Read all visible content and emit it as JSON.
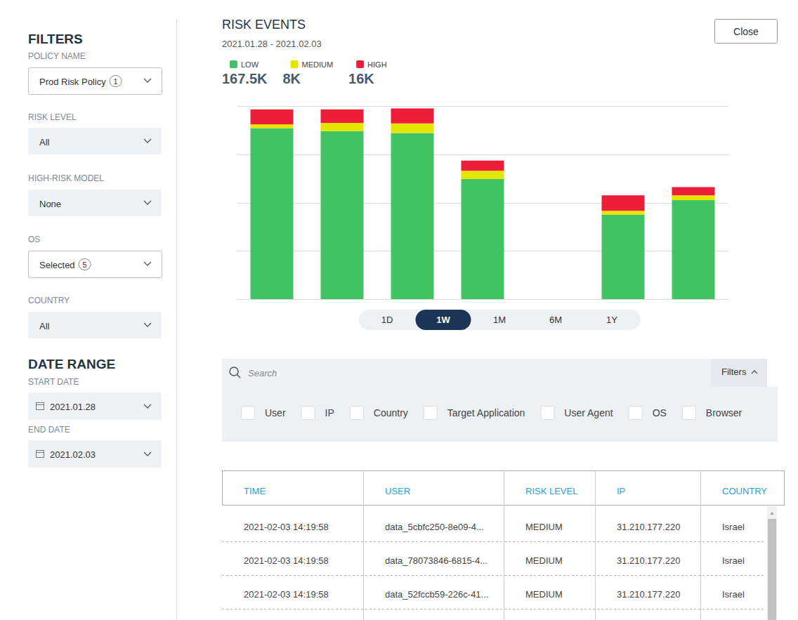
{
  "filters": {
    "title": "FILTERS",
    "fields": [
      {
        "label": "POLICY NAME",
        "value": "Prod Risk Policy",
        "count": 1
      },
      {
        "label": "RISK LEVEL",
        "value": "All"
      },
      {
        "label": "HIGH-RISK MODEL",
        "value": "None"
      },
      {
        "label": "OS",
        "value": "Selected",
        "count": 5
      },
      {
        "label": "COUNTRY",
        "value": "All"
      }
    ]
  },
  "date_range": {
    "title": "DATE RANGE",
    "fields": [
      {
        "label": "START DATE",
        "value": "2021.01.28"
      },
      {
        "label": "END DATE",
        "value": "2021.02.03"
      }
    ]
  },
  "header": {
    "title": "RISK EVENTS",
    "subtitle": "2021.01.28 - 2021.02.03",
    "close": "Close"
  },
  "chart_data": {
    "type": "bar",
    "stacked": true,
    "grid": true,
    "tick_labels": false,
    "legend": "top-left",
    "categories": [
      null,
      null,
      null,
      null,
      null,
      null,
      null
    ],
    "ylim": [
      0,
      40000
    ],
    "yticks": [
      0,
      10000,
      20000,
      30000,
      40000
    ],
    "series": [
      {
        "name": "LOW",
        "color": "#41c363",
        "total_label": "167.5K",
        "values": [
          35400,
          34800,
          34400,
          24900,
          0,
          17500,
          20500
        ]
      },
      {
        "name": "MEDIUM",
        "color": "#e4e600",
        "total_label": "8K",
        "values": [
          800,
          1700,
          2000,
          1700,
          0,
          800,
          1000
        ]
      },
      {
        "name": "HIGH",
        "color": "#ee1d3a",
        "total_label": "16K",
        "values": [
          3100,
          2800,
          3100,
          2100,
          0,
          3200,
          1700
        ]
      }
    ]
  },
  "periods": {
    "options": [
      "1D",
      "1W",
      "1M",
      "6M",
      "1Y"
    ],
    "selected": "1W"
  },
  "search": {
    "placeholder": "Search",
    "filters_button": "Filters",
    "options": [
      "User",
      "IP",
      "Country",
      "Target Application",
      "User Agent",
      "OS",
      "Browser"
    ]
  },
  "table": {
    "columns": [
      "TIME",
      "USER",
      "RISK LEVEL",
      "IP",
      "COUNTRY"
    ],
    "rows": [
      [
        "2021-02-03 14:19:58",
        "data_5cbfc250-8e09-4...",
        "MEDIUM",
        "31.210.177.220",
        "Israel"
      ],
      [
        "2021-02-03 14:19:58",
        "data_78073846-6815-4...",
        "MEDIUM",
        "31.210.177.220",
        "Israel"
      ],
      [
        "2021-02-03 14:19:58",
        "data_52fccb59-226c-41...",
        "MEDIUM",
        "31.210.177.220",
        "Israel"
      ]
    ]
  }
}
